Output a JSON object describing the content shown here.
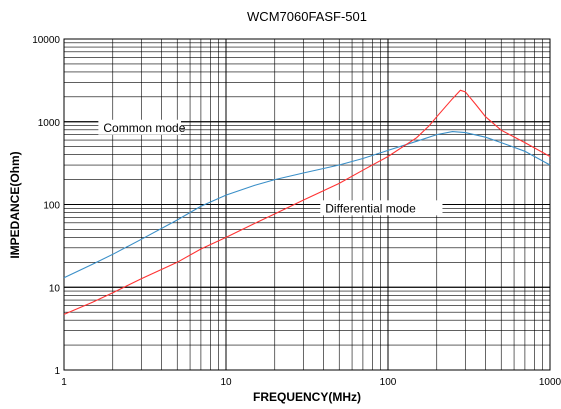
{
  "chart_data": {
    "type": "line",
    "title": "WCM7060FASF-501",
    "xlabel": "FREQUENCY(MHz)",
    "ylabel": "IMPEDANCE(Ohm)",
    "x_scale": "log",
    "y_scale": "log",
    "xlim": [
      1,
      1000
    ],
    "ylim": [
      1,
      10000
    ],
    "x_ticks": [
      "1",
      "10",
      "100",
      "1000"
    ],
    "y_ticks": [
      "1",
      "10",
      "100",
      "1000",
      "10000"
    ],
    "grid": true,
    "colors": {
      "common": "#3a8fc8",
      "differential": "#ff3333",
      "grid": "#000000"
    },
    "annotations": [
      {
        "text": "Common mode",
        "x": 1.75,
        "y": 800
      },
      {
        "text": "Differential mode",
        "x": 41,
        "y": 85
      }
    ],
    "series": [
      {
        "key": "common",
        "x": [
          1,
          1.5,
          2,
          3,
          5,
          7,
          10,
          15,
          20,
          30,
          50,
          70,
          100,
          150,
          200,
          250,
          300,
          400,
          500,
          700,
          1000
        ],
        "y": [
          13,
          19,
          25,
          38,
          65,
          95,
          130,
          170,
          200,
          240,
          300,
          360,
          450,
          580,
          700,
          760,
          740,
          650,
          560,
          440,
          300
        ]
      },
      {
        "key": "differential",
        "x": [
          1,
          1.5,
          2,
          3,
          5,
          7,
          10,
          15,
          20,
          30,
          50,
          70,
          100,
          150,
          180,
          200,
          250,
          280,
          300,
          350,
          400,
          500,
          700,
          1000
        ],
        "y": [
          4.7,
          6.6,
          8.6,
          12.7,
          20,
          29,
          40,
          59,
          77,
          113,
          180,
          260,
          380,
          640,
          900,
          1150,
          1900,
          2400,
          2300,
          1600,
          1150,
          790,
          560,
          380
        ]
      }
    ]
  }
}
